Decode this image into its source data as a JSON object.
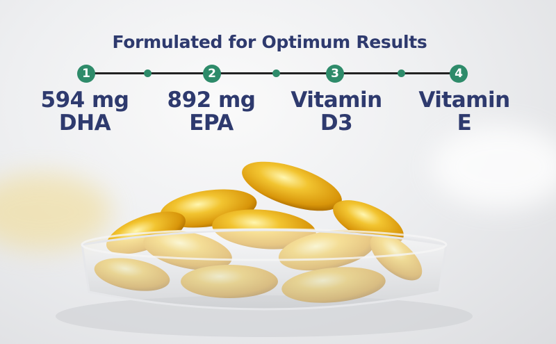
{
  "title": "Formulated for Optimum Results",
  "steps": [
    {
      "number": "1",
      "line1": "594 mg",
      "line2": "DHA"
    },
    {
      "number": "2",
      "line1": "892 mg",
      "line2": "EPA"
    },
    {
      "number": "3",
      "line1": "Vitamin",
      "line2": "D3"
    },
    {
      "number": "4",
      "line1": "Vitamin",
      "line2": "E"
    }
  ],
  "colors": {
    "text": "#2e3a6e",
    "accent": "#2e8b6a",
    "capsule": "#e8b020"
  }
}
